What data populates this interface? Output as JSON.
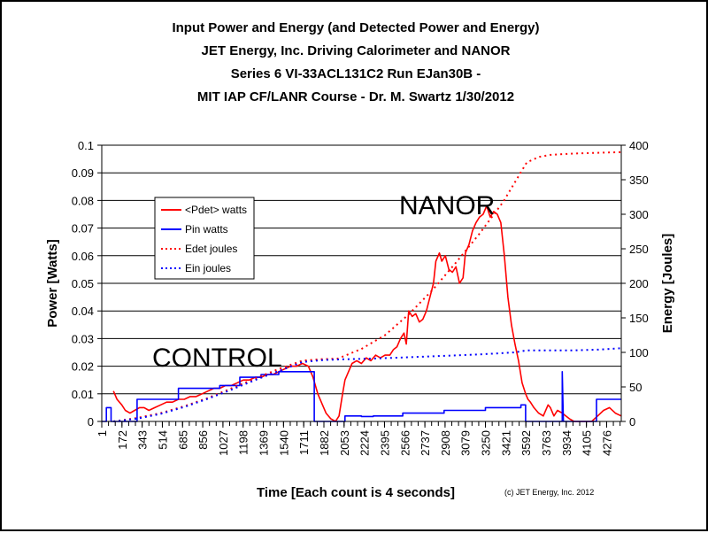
{
  "chart_data": {
    "type": "line",
    "title_lines": [
      "Input Power and Energy (and Detected Power and Energy)",
      "JET Energy, Inc. Driving Calorimeter and NANOR",
      "Series 6  VI-33ACL131C2 Run EJan30B -",
      "MIT IAP CF/LANR Course - Dr. M. Swartz  1/30/2012"
    ],
    "xlabel": "Time [Each count is 4 seconds]",
    "ylabel_left": "Power [Watts]",
    "ylabel_right": "Energy [Joules]",
    "xlim": [
      1,
      4400
    ],
    "ylim_left": [
      0,
      0.1
    ],
    "ylim_right": [
      0,
      400
    ],
    "x_ticks": [
      "1",
      "172",
      "343",
      "514",
      "685",
      "856",
      "1027",
      "1198",
      "1369",
      "1540",
      "1711",
      "1882",
      "2053",
      "2224",
      "2395",
      "2566",
      "2737",
      "2908",
      "3079",
      "3250",
      "3421",
      "3592",
      "3763",
      "3934",
      "4105",
      "4276"
    ],
    "y_ticks_left": [
      "0",
      "0.01",
      "0.02",
      "0.03",
      "0.04",
      "0.05",
      "0.06",
      "0.07",
      "0.08",
      "0.09",
      "0.1"
    ],
    "y_ticks_right": [
      "0",
      "50",
      "100",
      "150",
      "200",
      "250",
      "300",
      "350",
      "400"
    ],
    "grid": "horizontal",
    "legend_position": "upper-left",
    "annotations": [
      "NANOR",
      "CONTROL"
    ],
    "credit": "(c) JET Energy, Inc. 2012",
    "series": [
      {
        "name": "<Pdet> watts",
        "axis": "left",
        "color": "#ff0000",
        "style": "solid",
        "x": [
          100,
          130,
          170,
          200,
          240,
          280,
          320,
          360,
          400,
          450,
          500,
          550,
          600,
          650,
          700,
          750,
          800,
          850,
          900,
          950,
          1000,
          1050,
          1100,
          1150,
          1200,
          1250,
          1300,
          1350,
          1400,
          1450,
          1500,
          1550,
          1600,
          1650,
          1700,
          1750,
          1790,
          1830,
          1870,
          1900,
          1940,
          1980,
          2010,
          2040,
          2060,
          2090,
          2120,
          2160,
          2200,
          2240,
          2280,
          2320,
          2360,
          2400,
          2440,
          2470,
          2500,
          2530,
          2560,
          2580,
          2600,
          2630,
          2660,
          2690,
          2720,
          2750,
          2780,
          2810,
          2830,
          2860,
          2880,
          2910,
          2940,
          2970,
          3000,
          3030,
          3060,
          3080,
          3110,
          3140,
          3170,
          3200,
          3230,
          3260,
          3290,
          3320,
          3350,
          3380,
          3410,
          3440,
          3470,
          3500,
          3530,
          3560,
          3590,
          3610,
          3630,
          3660,
          3700,
          3740,
          3780,
          3800,
          3830,
          3860,
          3900,
          3930,
          3960,
          4000,
          4050,
          4100,
          4150,
          4200,
          4250,
          4300,
          4350,
          4400
        ],
        "values": [
          0.011,
          0.008,
          0.006,
          0.004,
          0.003,
          0.004,
          0.005,
          0.005,
          0.004,
          0.005,
          0.006,
          0.007,
          0.007,
          0.008,
          0.008,
          0.009,
          0.009,
          0.01,
          0.011,
          0.012,
          0.012,
          0.013,
          0.013,
          0.014,
          0.015,
          0.015,
          0.016,
          0.016,
          0.017,
          0.017,
          0.018,
          0.019,
          0.02,
          0.02,
          0.021,
          0.02,
          0.016,
          0.01,
          0.006,
          0.003,
          0.001,
          0.0,
          0.002,
          0.01,
          0.015,
          0.018,
          0.021,
          0.022,
          0.021,
          0.023,
          0.022,
          0.024,
          0.023,
          0.024,
          0.024,
          0.026,
          0.027,
          0.03,
          0.032,
          0.028,
          0.04,
          0.038,
          0.039,
          0.036,
          0.037,
          0.04,
          0.045,
          0.05,
          0.058,
          0.061,
          0.058,
          0.06,
          0.055,
          0.054,
          0.056,
          0.05,
          0.052,
          0.061,
          0.064,
          0.069,
          0.072,
          0.074,
          0.075,
          0.078,
          0.074,
          0.076,
          0.075,
          0.072,
          0.06,
          0.045,
          0.035,
          0.028,
          0.022,
          0.014,
          0.01,
          0.008,
          0.007,
          0.005,
          0.003,
          0.002,
          0.006,
          0.005,
          0.002,
          0.004,
          0.003,
          0.002,
          0.001,
          0.0,
          0.0,
          0.0,
          0.0,
          0.002,
          0.004,
          0.005,
          0.003,
          0.002
        ]
      },
      {
        "name": "Pin watts",
        "axis": "left",
        "color": "#0000ff",
        "style": "solid",
        "x": [
          1,
          40,
          40,
          80,
          80,
          300,
          300,
          650,
          650,
          1000,
          1000,
          1170,
          1170,
          1350,
          1350,
          1500,
          1500,
          1800,
          1800,
          1880,
          1880,
          2050,
          2060,
          2060,
          2200,
          2200,
          2300,
          2300,
          2550,
          2550,
          2900,
          2900,
          3250,
          3250,
          3550,
          3550,
          3590,
          3590,
          3900,
          3900,
          3910,
          3920,
          3930,
          3930,
          4190,
          4190,
          4276,
          4276,
          4400
        ],
        "values": [
          0.0,
          0.0,
          0.005,
          0.005,
          0.0,
          0.0,
          0.008,
          0.008,
          0.012,
          0.012,
          0.013,
          0.013,
          0.016,
          0.016,
          0.017,
          0.017,
          0.018,
          0.018,
          0.0,
          0.0,
          0.0,
          0.0,
          0.0,
          0.002,
          0.002,
          0.0018,
          0.0018,
          0.002,
          0.002,
          0.003,
          0.003,
          0.004,
          0.004,
          0.005,
          0.005,
          0.006,
          0.006,
          0.0,
          0.0,
          0.018,
          0.0,
          0.0,
          0.0,
          0.0,
          0.0,
          0.008,
          0.008,
          0.008,
          0.008
        ]
      },
      {
        "name": "Edet joules",
        "axis": "right",
        "color": "#ff0000",
        "style": "dotted",
        "x": [
          100,
          300,
          500,
          700,
          900,
          1100,
          1300,
          1500,
          1700,
          1850,
          2000,
          2200,
          2400,
          2600,
          2800,
          3000,
          3200,
          3400,
          3600,
          3700,
          3800,
          4000,
          4200,
          4400
        ],
        "values": [
          0,
          5,
          12,
          22,
          34,
          48,
          62,
          76,
          88,
          90,
          91,
          105,
          125,
          155,
          190,
          230,
          272,
          318,
          375,
          383,
          386,
          388,
          389,
          390
        ]
      },
      {
        "name": "Ein joules",
        "axis": "right",
        "color": "#0000ff",
        "style": "dotted",
        "x": [
          100,
          300,
          500,
          700,
          900,
          1100,
          1300,
          1500,
          1700,
          1880,
          2050,
          2300,
          2600,
          2900,
          3200,
          3500,
          3600,
          3800,
          4000,
          4200,
          4400
        ],
        "values": [
          0,
          4,
          11,
          21,
          33,
          46,
          60,
          73,
          86,
          89,
          90,
          91,
          93,
          95,
          97,
          100,
          103,
          103,
          103,
          104,
          106
        ]
      }
    ]
  }
}
